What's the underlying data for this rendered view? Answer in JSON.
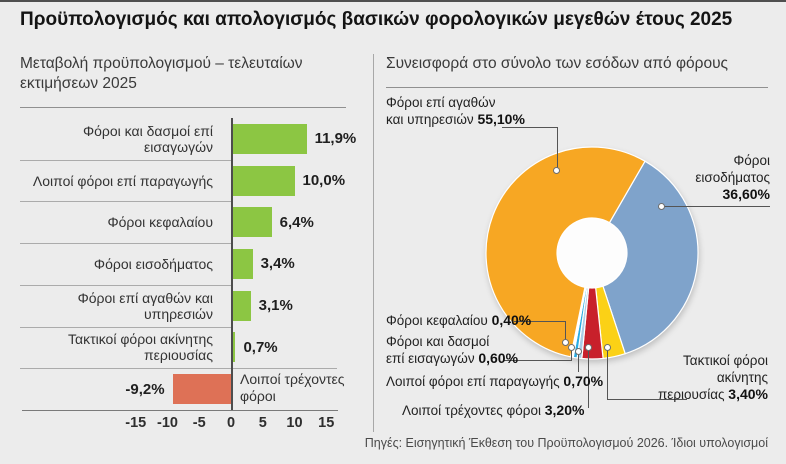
{
  "title": "Προϋπολογισμός και απολογισμός βασικών φορολογικών μεγεθών έτους 2025",
  "source": "Πηγές: Εισηγητική Έκθεση του Προϋπολογισμού 2026. Ίδιοι υπολογισμοί",
  "left_panel": {
    "subtitle": "Μεταβολή προϋπολογισμού – τελευταίων εκτιμήσεων 2025"
  },
  "right_panel": {
    "subtitle": "Συνεισφορά στο σύνολο των εσόδων από φόρους",
    "callouts": {
      "goods": {
        "line1": "Φόροι επί αγαθών",
        "line2": "και υπηρεσιών",
        "value": "55,10%"
      },
      "income": {
        "line1": "Φόροι",
        "line2": "εισοδήματος",
        "value": "36,60%"
      },
      "capital": {
        "line1": "Φόροι κεφαλαίου",
        "value": "0,40%"
      },
      "imports": {
        "line1": "Φόροι και δασμοί",
        "line2": "επί εισαγωγών",
        "value": "0,60%"
      },
      "production": {
        "line1": "Λοιποί φόροι επί παραγωγής",
        "value": "0,70%"
      },
      "current": {
        "line1": "Λοιποί τρέχοντες φόροι",
        "value": "3,20%"
      },
      "property": {
        "line1": "Τακτικοί φόροι",
        "line2": "ακίνητης",
        "line3": "περιουσίας",
        "value": "3,40%"
      }
    }
  },
  "colors": {
    "background": "#ECECEC",
    "bar_positive": "#8CC643",
    "bar_negative": "#DE7156",
    "donut_orange": "#F7A723",
    "donut_blue": "#7FA3CB",
    "donut_yellow": "#FBD116",
    "donut_red": "#C8202B",
    "donut_cyan": "#29ABE2",
    "donut_lightblue": "#A9CCE5",
    "donut_white": "#FFFFFF"
  },
  "chart_data": [
    {
      "type": "bar",
      "orientation": "horizontal",
      "title": "Μεταβολή προϋπολογισμού – τελευταίων εκτιμήσεων 2025",
      "categories": [
        "Φόροι και δασμοί επί εισαγωγών",
        "Λοιποί φόροι επί παραγωγής",
        "Φόροι κεφαλαίου",
        "Φόροι εισοδήματος",
        "Φόροι επί αγαθών και υπηρεσιών",
        "Τακτικοί φόροι ακίνητης περιουσίας",
        "Λοιποί τρέχοντες φόροι"
      ],
      "values": [
        11.9,
        10.0,
        6.4,
        3.4,
        3.1,
        0.7,
        -9.2
      ],
      "value_labels": [
        "11,9%",
        "10,0%",
        "6,4%",
        "3,4%",
        "3,1%",
        "0,7%",
        "-9,2%"
      ],
      "x_ticks": [
        "-15",
        "-10",
        "-5",
        "0",
        "5",
        "10",
        "15"
      ],
      "xlim": [
        -17,
        17
      ],
      "grid": false,
      "positive_color": "#8CC643",
      "negative_color": "#DE7156"
    },
    {
      "type": "pie",
      "subtype": "donut",
      "title": "Συνεισφορά στο σύνολο των εσόδων από φόρους",
      "rotation_deg": 30,
      "direction": "clockwise",
      "hole_ratio": 0.33,
      "slices": [
        {
          "label": "Φόροι εισοδήματος",
          "value": 36.6,
          "display": "36,60%",
          "color": "#7FA3CB"
        },
        {
          "label": "Τακτικοί φόροι ακίνητης περιουσίας",
          "value": 3.4,
          "display": "3,40%",
          "color": "#FBD116"
        },
        {
          "label": "Λοιποί τρέχοντες φόροι",
          "value": 3.2,
          "display": "3,20%",
          "color": "#C8202B"
        },
        {
          "label": "Λοιποί φόροι επί παραγωγής",
          "value": 0.7,
          "display": "0,70%",
          "color": "#A9CCE5"
        },
        {
          "label": "Φόροι και δασμοί επί εισαγωγών",
          "value": 0.6,
          "display": "0,60%",
          "color": "#29ABE2"
        },
        {
          "label": "Φόροι κεφαλαίου",
          "value": 0.4,
          "display": "0,40%",
          "color": "#FFFFFF"
        },
        {
          "label": "Φόροι επί αγαθών και υπηρεσιών",
          "value": 55.1,
          "display": "55,10%",
          "color": "#F7A723"
        }
      ]
    }
  ]
}
